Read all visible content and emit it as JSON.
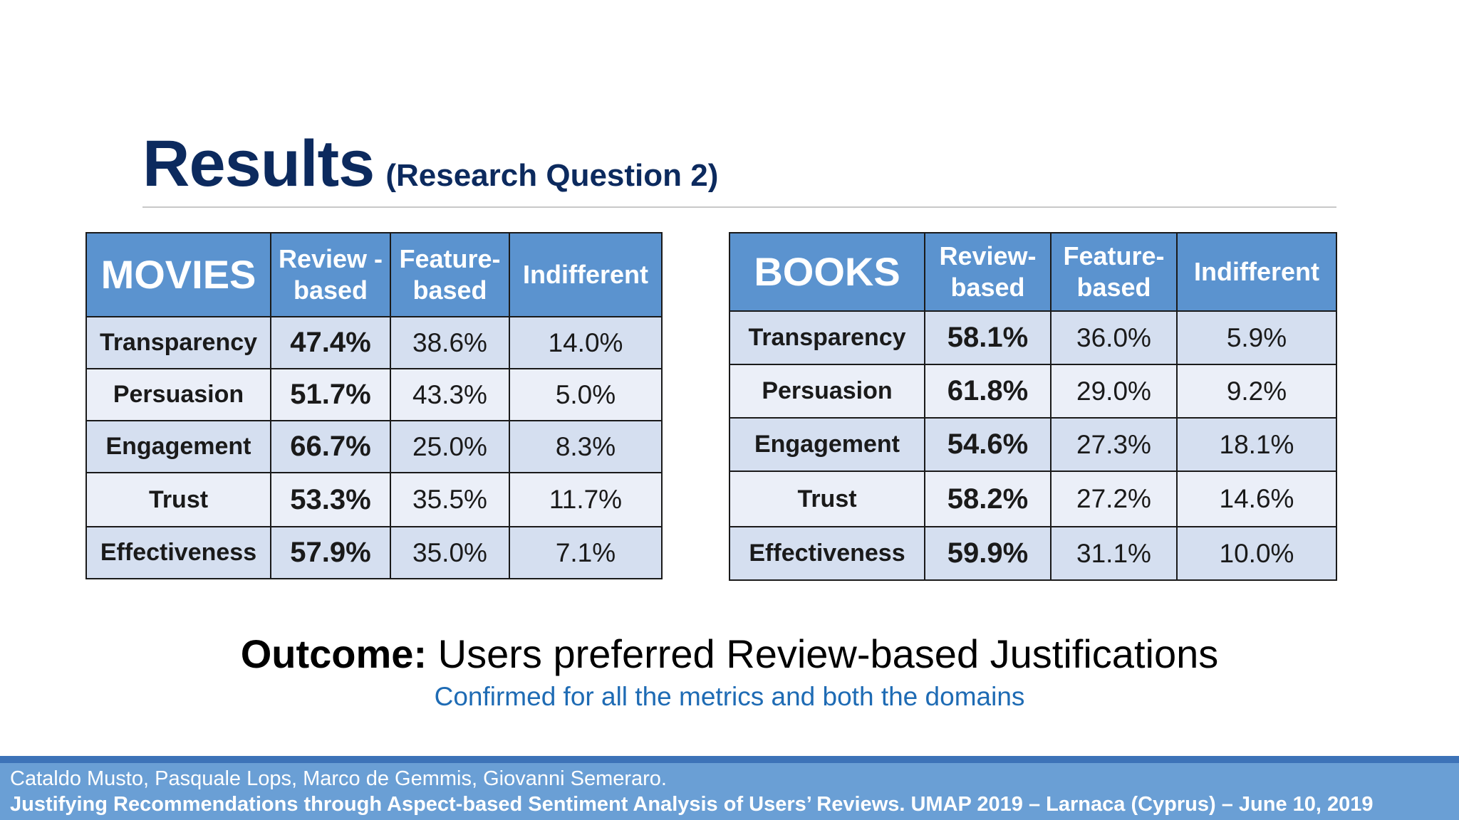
{
  "title": {
    "main": "Results",
    "sub": "(Research Question 2)"
  },
  "tables": {
    "movies": {
      "domain": "MOVIES",
      "col_review": "Review -based",
      "col_feature": "Feature-based",
      "col_indifferent": "Indifferent",
      "rows": [
        {
          "metric": "Transparency",
          "review": "47.4%",
          "feature": "38.6%",
          "indifferent": "14.0%"
        },
        {
          "metric": "Persuasion",
          "review": "51.7%",
          "feature": "43.3%",
          "indifferent": "5.0%"
        },
        {
          "metric": "Engagement",
          "review": "66.7%",
          "feature": "25.0%",
          "indifferent": "8.3%"
        },
        {
          "metric": "Trust",
          "review": "53.3%",
          "feature": "35.5%",
          "indifferent": "11.7%"
        },
        {
          "metric": "Effectiveness",
          "review": "57.9%",
          "feature": "35.0%",
          "indifferent": "7.1%"
        }
      ]
    },
    "books": {
      "domain": "BOOKS",
      "col_review": "Review-based",
      "col_feature": "Feature-based",
      "col_indifferent": "Indifferent",
      "rows": [
        {
          "metric": "Transparency",
          "review": "58.1%",
          "feature": "36.0%",
          "indifferent": "5.9%"
        },
        {
          "metric": "Persuasion",
          "review": "61.8%",
          "feature": "29.0%",
          "indifferent": "9.2%"
        },
        {
          "metric": "Engagement",
          "review": "54.6%",
          "feature": "27.3%",
          "indifferent": "18.1%"
        },
        {
          "metric": "Trust",
          "review": "58.2%",
          "feature": "27.2%",
          "indifferent": "14.6%"
        },
        {
          "metric": "Effectiveness",
          "review": "59.9%",
          "feature": "31.1%",
          "indifferent": "10.0%"
        }
      ]
    }
  },
  "outcome": {
    "lead": "Outcome:",
    "text": "Users preferred Review-based Justifications",
    "confirm": "Confirmed for all the metrics and both the domains"
  },
  "footer": {
    "authors": "Cataldo Musto, Pasquale Lops, Marco de Gemmis, Giovanni Semeraro.",
    "citation": "Justifying Recommendations through Aspect-based Sentiment Analysis of Users’ Reviews. UMAP 2019 – Larnaca (Cyprus) – June 10, 2019"
  },
  "colors": {
    "title": "#0c2a5e",
    "header_fill": "#5b93cf",
    "row_odd": "#d5dff0",
    "row_even": "#ebeff8",
    "confirm_text": "#1e6bb4",
    "footer": "#6a9fd5"
  }
}
